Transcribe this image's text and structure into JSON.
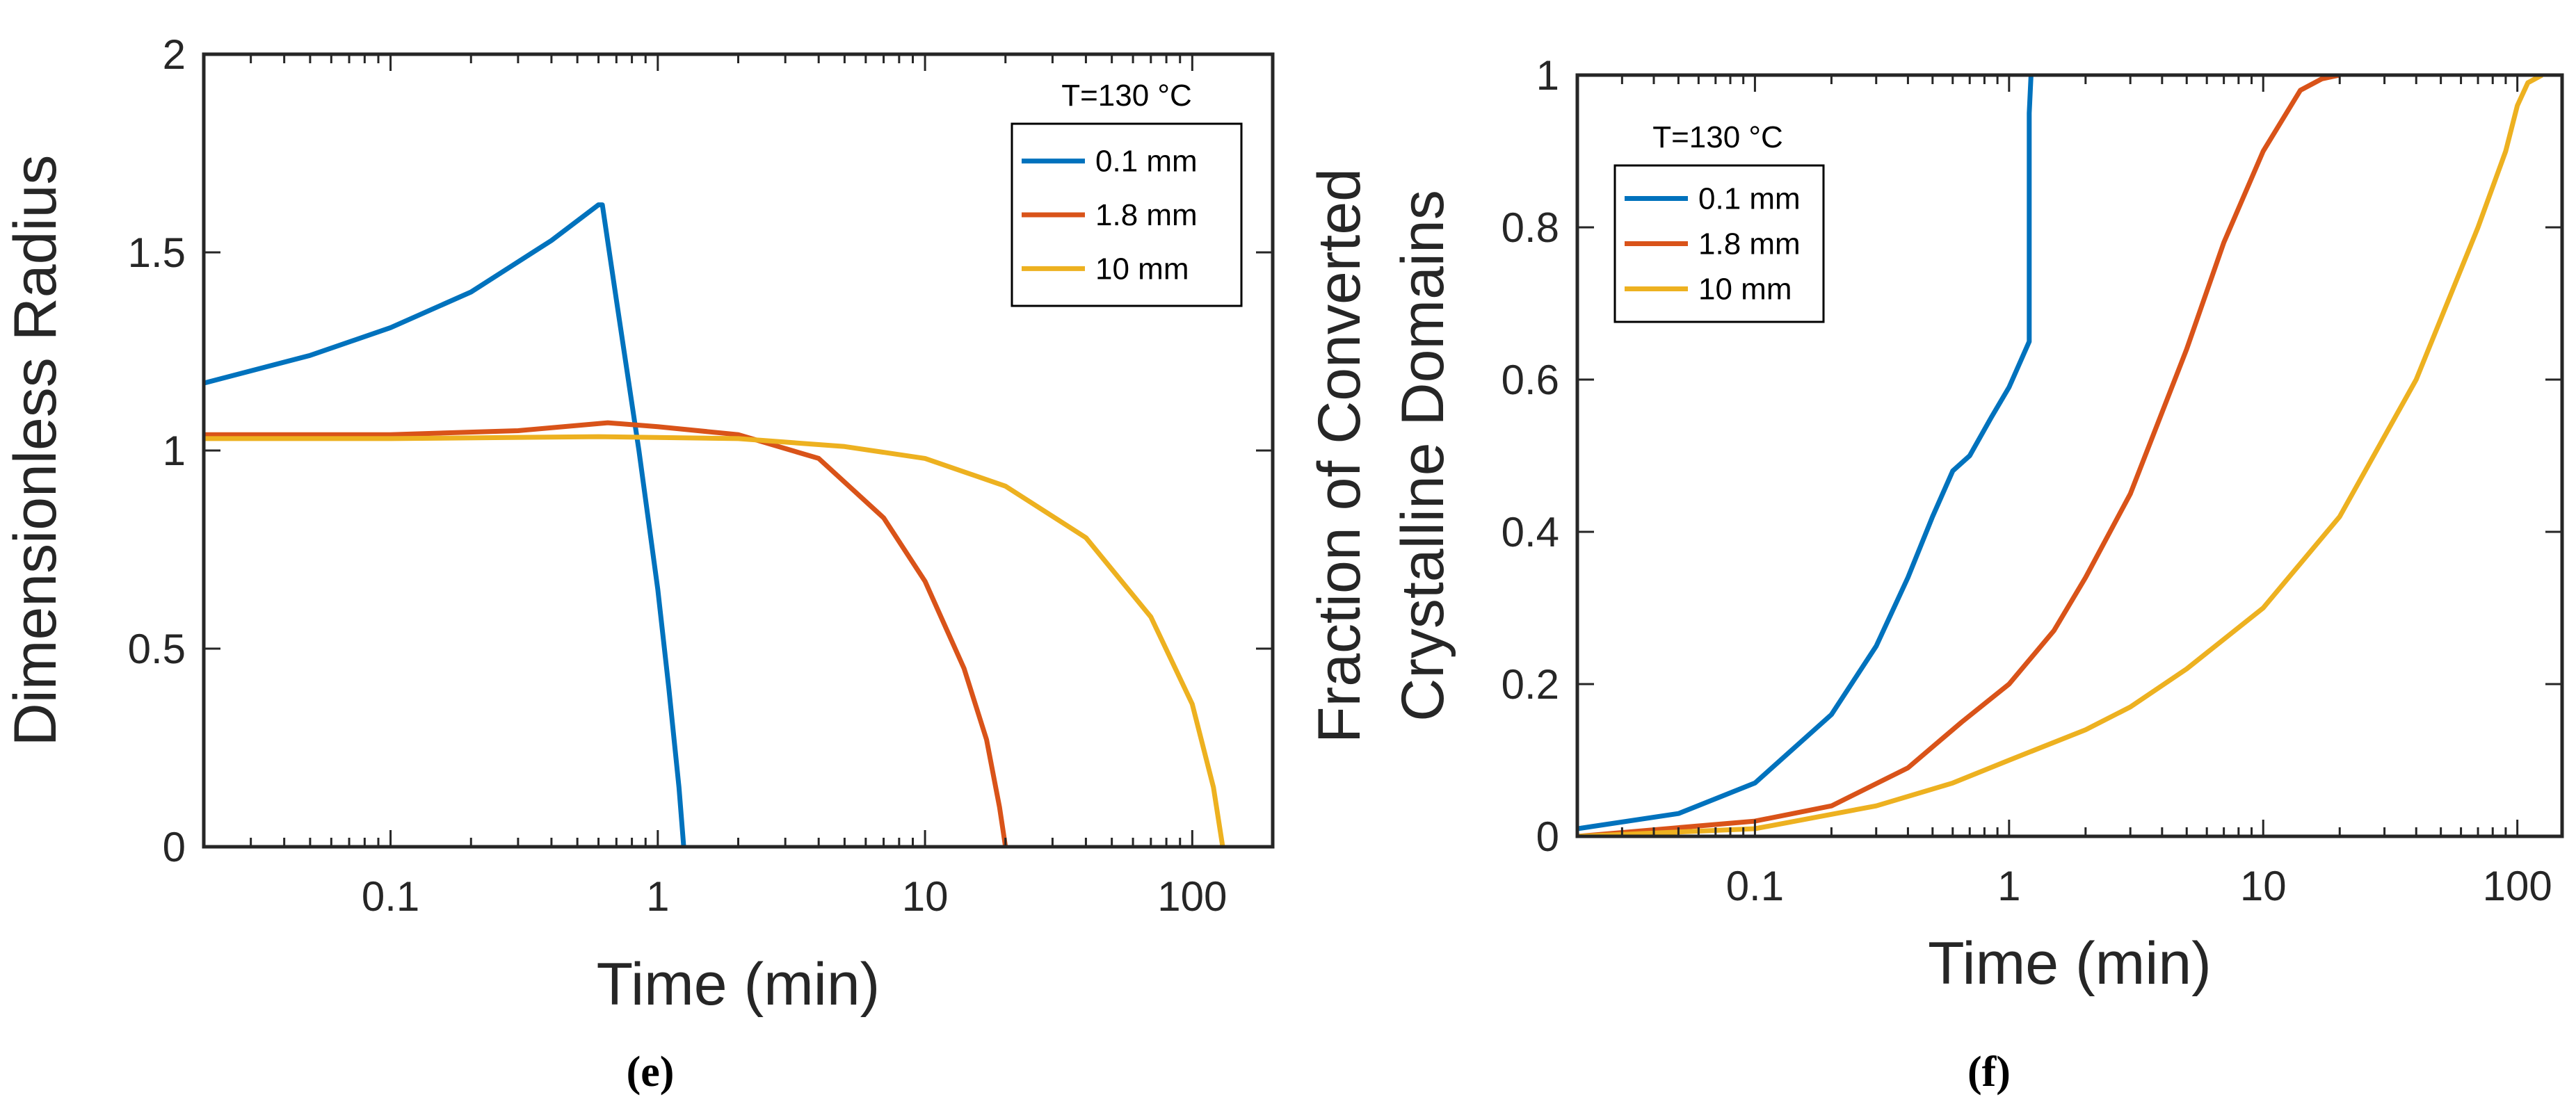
{
  "chart_data": [
    {
      "type": "line",
      "panel_label": "(e)",
      "annotation": "T=130 °C",
      "xlabel": "Time (min)",
      "ylabel": "Dimensionless Radius",
      "xscale": "log",
      "xlim": [
        0.02,
        200
      ],
      "ylim": [
        0,
        2
      ],
      "xticks": [
        0.1,
        1,
        10,
        100
      ],
      "xtick_labels": [
        "0.1",
        "1",
        "10",
        "100"
      ],
      "yticks": [
        0,
        0.5,
        1,
        1.5,
        2
      ],
      "ytick_labels": [
        "0",
        "0.5",
        "1",
        "1.5",
        "2"
      ],
      "legend_position": "top-right",
      "series": [
        {
          "name": "0.1 mm",
          "color": "#0072BD",
          "x": [
            0.02,
            0.05,
            0.1,
            0.2,
            0.4,
            0.6,
            0.62,
            0.7,
            0.85,
            1.0,
            1.1,
            1.2,
            1.25
          ],
          "y": [
            1.17,
            1.24,
            1.31,
            1.4,
            1.53,
            1.62,
            1.62,
            1.38,
            1.0,
            0.65,
            0.4,
            0.15,
            0.0
          ]
        },
        {
          "name": "1.8 mm",
          "color": "#D95319",
          "x": [
            0.02,
            0.1,
            0.3,
            0.65,
            1,
            2,
            4,
            7,
            10,
            14,
            17,
            19,
            20
          ],
          "y": [
            1.04,
            1.04,
            1.05,
            1.07,
            1.06,
            1.04,
            0.98,
            0.83,
            0.67,
            0.45,
            0.27,
            0.1,
            0.0
          ]
        },
        {
          "name": "10 mm",
          "color": "#EDB120",
          "x": [
            0.02,
            0.1,
            0.6,
            2,
            5,
            10,
            20,
            40,
            70,
            100,
            120,
            130
          ],
          "y": [
            1.03,
            1.03,
            1.035,
            1.03,
            1.01,
            0.98,
            0.91,
            0.78,
            0.58,
            0.36,
            0.15,
            0.0
          ]
        }
      ]
    },
    {
      "type": "line",
      "panel_label": "(f)",
      "annotation": "T=130 °C",
      "xlabel": "Time (min)",
      "ylabel": "Fraction of Converted Crystalline Domains",
      "ylabel_lines": [
        "Fraction of Converted",
        "Crystalline Domains"
      ],
      "xscale": "log",
      "xlim": [
        0.02,
        150
      ],
      "ylim": [
        0,
        1
      ],
      "xticks": [
        0.1,
        1,
        10,
        100
      ],
      "xtick_labels": [
        "0.1",
        "1",
        "10",
        "100"
      ],
      "yticks": [
        0,
        0.2,
        0.4,
        0.6,
        0.8,
        1
      ],
      "ytick_labels": [
        "0",
        "0.2",
        "0.4",
        "0.6",
        "0.8",
        "1"
      ],
      "legend_position": "top-left",
      "series": [
        {
          "name": "0.1 mm",
          "color": "#0072BD",
          "x": [
            0.02,
            0.05,
            0.1,
            0.2,
            0.3,
            0.4,
            0.5,
            0.6,
            0.7,
            0.85,
            1.0,
            1.2,
            1.2,
            1.22
          ],
          "y": [
            0.01,
            0.03,
            0.07,
            0.16,
            0.25,
            0.34,
            0.42,
            0.48,
            0.5,
            0.55,
            0.59,
            0.65,
            0.95,
            1.0
          ]
        },
        {
          "name": "1.8 mm",
          "color": "#D95319",
          "x": [
            0.02,
            0.1,
            0.2,
            0.4,
            0.65,
            1,
            1.5,
            2,
            3,
            5,
            7,
            10,
            14,
            17,
            20
          ],
          "y": [
            0.0,
            0.02,
            0.04,
            0.09,
            0.15,
            0.2,
            0.27,
            0.34,
            0.45,
            0.64,
            0.78,
            0.9,
            0.98,
            0.995,
            1.0
          ]
        },
        {
          "name": "10 mm",
          "color": "#EDB120",
          "x": [
            0.02,
            0.1,
            0.3,
            0.6,
            1,
            2,
            3,
            5,
            10,
            20,
            40,
            70,
            90,
            100,
            110,
            125
          ],
          "y": [
            0.0,
            0.01,
            0.04,
            0.07,
            0.1,
            0.14,
            0.17,
            0.22,
            0.3,
            0.42,
            0.6,
            0.8,
            0.9,
            0.96,
            0.99,
            1.0
          ]
        }
      ]
    }
  ]
}
